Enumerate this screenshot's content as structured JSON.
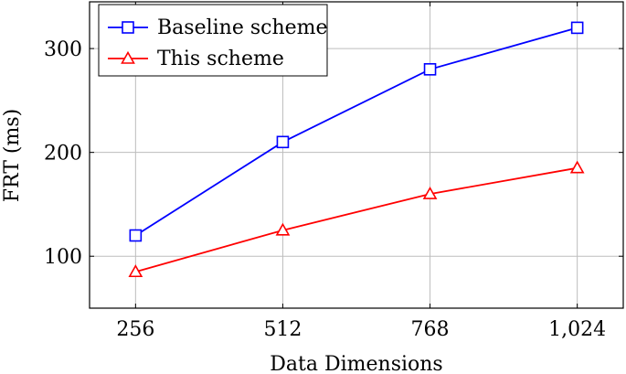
{
  "chart_data": {
    "type": "line",
    "title": "",
    "xlabel": "Data Dimensions",
    "ylabel": "FRT (ms)",
    "categories": [
      "256",
      "512",
      "768",
      "1,024"
    ],
    "x": [
      256,
      512,
      768,
      1024
    ],
    "xlim": [
      176,
      1104
    ],
    "ylim": [
      50,
      345
    ],
    "yticks": [
      100,
      200,
      300
    ],
    "grid": true,
    "legend_position": "top-left",
    "series": [
      {
        "name": "Baseline scheme",
        "values": [
          120,
          210,
          280,
          320
        ],
        "color": "#0000ff",
        "marker": "square"
      },
      {
        "name": "This scheme",
        "values": [
          85,
          125,
          160,
          185
        ],
        "color": "#ff0000",
        "marker": "triangle"
      }
    ]
  }
}
